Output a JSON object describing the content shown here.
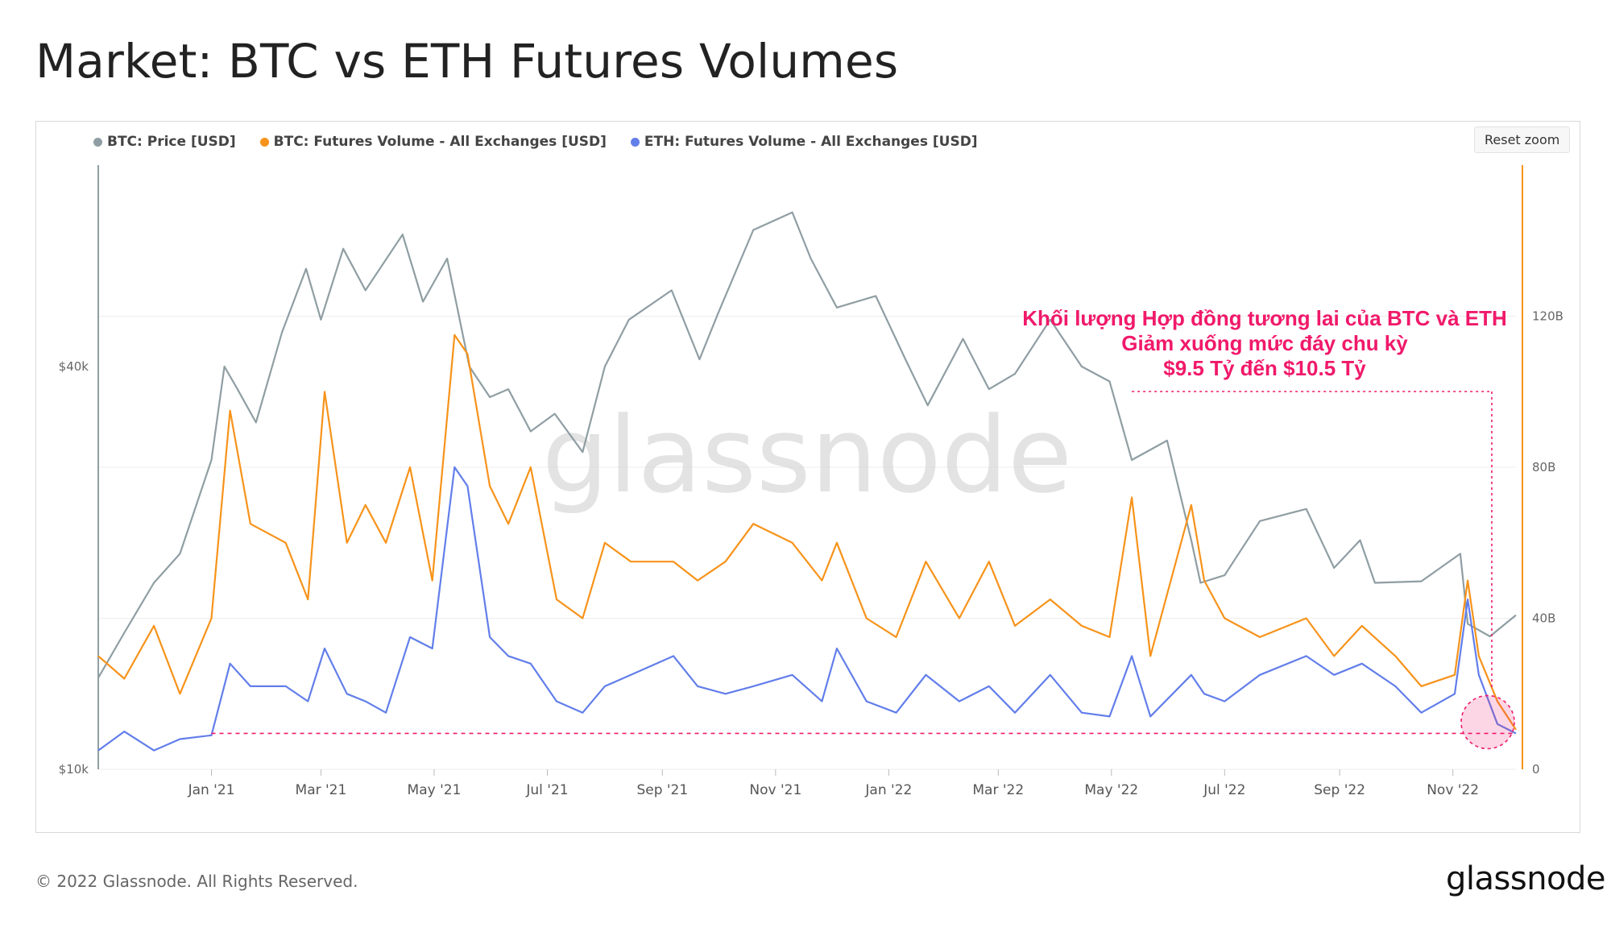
{
  "page": {
    "title": "Market: BTC vs ETH Futures Volumes",
    "copyright": "© 2022 Glassnode. All Rights Reserved.",
    "footer_logo": "glassnode",
    "watermark": "glassnode",
    "reset_zoom": "Reset zoom"
  },
  "annotation": {
    "line1": "Khối lượng Hợp đồng tương lai của BTC và ETH",
    "line2": "Giảm xuống mức đáy chu kỳ",
    "line3": "$9.5 Tỷ đến $10.5 Tỷ",
    "color": "#f0196a"
  },
  "chart_data": {
    "type": "line",
    "title": "Market: BTC vs ETH Futures Volumes",
    "x_ticks": [
      "Jan '21",
      "Mar '21",
      "May '21",
      "Jul '21",
      "Sep '21",
      "Nov '21",
      "Jan '22",
      "Mar '22",
      "May '22",
      "Jul '22",
      "Sep '22",
      "Nov '22"
    ],
    "x_range": [
      "2020-11-01",
      "2022-12-05"
    ],
    "left_axis": {
      "scale": "log",
      "ticks": [
        "$10k",
        "$40k"
      ],
      "range": [
        10000,
        80000
      ]
    },
    "right_axis": {
      "scale": "linear",
      "ticks": [
        "0",
        "40B",
        "80B",
        "120B"
      ],
      "range": [
        0,
        160
      ]
    },
    "grid": true,
    "legend_position": "top-left",
    "series": [
      {
        "name": "BTC: Price [USD]",
        "color": "#8f9ea3",
        "axis": "left",
        "points": [
          [
            "2020-11-01",
            13700
          ],
          [
            "2020-11-15",
            16000
          ],
          [
            "2020-12-01",
            19000
          ],
          [
            "2020-12-15",
            21000
          ],
          [
            "2021-01-01",
            29000
          ],
          [
            "2021-01-08",
            40000
          ],
          [
            "2021-01-15",
            37000
          ],
          [
            "2021-01-25",
            33000
          ],
          [
            "2021-02-08",
            45000
          ],
          [
            "2021-02-21",
            56000
          ],
          [
            "2021-03-01",
            47000
          ],
          [
            "2021-03-13",
            60000
          ],
          [
            "2021-03-25",
            52000
          ],
          [
            "2021-04-14",
            63000
          ],
          [
            "2021-04-25",
            50000
          ],
          [
            "2021-05-08",
            58000
          ],
          [
            "2021-05-20",
            40000
          ],
          [
            "2021-05-31",
            36000
          ],
          [
            "2021-06-10",
            37000
          ],
          [
            "2021-06-22",
            32000
          ],
          [
            "2021-07-05",
            34000
          ],
          [
            "2021-07-20",
            29800
          ],
          [
            "2021-08-01",
            40000
          ],
          [
            "2021-08-14",
            47000
          ],
          [
            "2021-09-06",
            52000
          ],
          [
            "2021-09-21",
            41000
          ],
          [
            "2021-10-01",
            48000
          ],
          [
            "2021-10-20",
            64000
          ],
          [
            "2021-11-10",
            68000
          ],
          [
            "2021-11-20",
            58000
          ],
          [
            "2021-12-04",
            49000
          ],
          [
            "2021-12-25",
            51000
          ],
          [
            "2022-01-10",
            41000
          ],
          [
            "2022-01-22",
            35000
          ],
          [
            "2022-02-10",
            44000
          ],
          [
            "2022-02-24",
            37000
          ],
          [
            "2022-03-10",
            39000
          ],
          [
            "2022-03-29",
            47000
          ],
          [
            "2022-04-15",
            40000
          ],
          [
            "2022-04-30",
            38000
          ],
          [
            "2022-05-12",
            29000
          ],
          [
            "2022-05-31",
            31000
          ],
          [
            "2022-06-13",
            22000
          ],
          [
            "2022-06-18",
            19000
          ],
          [
            "2022-07-01",
            19500
          ],
          [
            "2022-07-20",
            23500
          ],
          [
            "2022-08-14",
            24500
          ],
          [
            "2022-08-29",
            20000
          ],
          [
            "2022-09-12",
            22000
          ],
          [
            "2022-09-20",
            19000
          ],
          [
            "2022-10-15",
            19100
          ],
          [
            "2022-11-05",
            21000
          ],
          [
            "2022-11-09",
            16500
          ],
          [
            "2022-11-21",
            15800
          ],
          [
            "2022-12-05",
            17000
          ]
        ]
      },
      {
        "name": "BTC: Futures Volume - All Exchanges [USD]",
        "color": "#f7931a",
        "axis": "right",
        "points": [
          [
            "2020-11-01",
            30
          ],
          [
            "2020-11-15",
            24
          ],
          [
            "2020-12-01",
            38
          ],
          [
            "2020-12-15",
            20
          ],
          [
            "2021-01-01",
            40
          ],
          [
            "2021-01-11",
            95
          ],
          [
            "2021-01-22",
            65
          ],
          [
            "2021-02-10",
            60
          ],
          [
            "2021-02-22",
            45
          ],
          [
            "2021-03-03",
            100
          ],
          [
            "2021-03-15",
            60
          ],
          [
            "2021-03-25",
            70
          ],
          [
            "2021-04-05",
            60
          ],
          [
            "2021-04-18",
            80
          ],
          [
            "2021-04-30",
            50
          ],
          [
            "2021-05-12",
            115
          ],
          [
            "2021-05-19",
            110
          ],
          [
            "2021-05-31",
            75
          ],
          [
            "2021-06-10",
            65
          ],
          [
            "2021-06-22",
            80
          ],
          [
            "2021-07-06",
            45
          ],
          [
            "2021-07-20",
            40
          ],
          [
            "2021-08-01",
            60
          ],
          [
            "2021-08-15",
            55
          ],
          [
            "2021-09-07",
            55
          ],
          [
            "2021-09-20",
            50
          ],
          [
            "2021-10-05",
            55
          ],
          [
            "2021-10-20",
            65
          ],
          [
            "2021-11-10",
            60
          ],
          [
            "2021-11-26",
            50
          ],
          [
            "2021-12-04",
            60
          ],
          [
            "2021-12-20",
            40
          ],
          [
            "2022-01-05",
            35
          ],
          [
            "2022-01-21",
            55
          ],
          [
            "2022-02-08",
            40
          ],
          [
            "2022-02-24",
            55
          ],
          [
            "2022-03-10",
            38
          ],
          [
            "2022-03-29",
            45
          ],
          [
            "2022-04-15",
            38
          ],
          [
            "2022-04-30",
            35
          ],
          [
            "2022-05-12",
            72
          ],
          [
            "2022-05-22",
            30
          ],
          [
            "2022-06-13",
            70
          ],
          [
            "2022-06-20",
            50
          ],
          [
            "2022-07-01",
            40
          ],
          [
            "2022-07-20",
            35
          ],
          [
            "2022-08-14",
            40
          ],
          [
            "2022-08-29",
            30
          ],
          [
            "2022-09-13",
            38
          ],
          [
            "2022-10-01",
            30
          ],
          [
            "2022-10-15",
            22
          ],
          [
            "2022-11-02",
            25
          ],
          [
            "2022-11-09",
            50
          ],
          [
            "2022-11-15",
            30
          ],
          [
            "2022-11-25",
            18
          ],
          [
            "2022-12-05",
            10.5
          ]
        ]
      },
      {
        "name": "ETH: Futures Volume - All Exchanges [USD]",
        "color": "#627eea",
        "axis": "right",
        "points": [
          [
            "2020-11-01",
            5
          ],
          [
            "2020-11-15",
            10
          ],
          [
            "2020-12-01",
            5
          ],
          [
            "2020-12-15",
            8
          ],
          [
            "2021-01-01",
            9
          ],
          [
            "2021-01-11",
            28
          ],
          [
            "2021-01-22",
            22
          ],
          [
            "2021-02-10",
            22
          ],
          [
            "2021-02-22",
            18
          ],
          [
            "2021-03-03",
            32
          ],
          [
            "2021-03-15",
            20
          ],
          [
            "2021-03-25",
            18
          ],
          [
            "2021-04-05",
            15
          ],
          [
            "2021-04-18",
            35
          ],
          [
            "2021-04-30",
            32
          ],
          [
            "2021-05-12",
            80
          ],
          [
            "2021-05-19",
            75
          ],
          [
            "2021-05-31",
            35
          ],
          [
            "2021-06-10",
            30
          ],
          [
            "2021-06-22",
            28
          ],
          [
            "2021-07-06",
            18
          ],
          [
            "2021-07-20",
            15
          ],
          [
            "2021-08-01",
            22
          ],
          [
            "2021-08-15",
            25
          ],
          [
            "2021-09-07",
            30
          ],
          [
            "2021-09-20",
            22
          ],
          [
            "2021-10-05",
            20
          ],
          [
            "2021-10-20",
            22
          ],
          [
            "2021-11-10",
            25
          ],
          [
            "2021-11-26",
            18
          ],
          [
            "2021-12-04",
            32
          ],
          [
            "2021-12-20",
            18
          ],
          [
            "2022-01-05",
            15
          ],
          [
            "2022-01-21",
            25
          ],
          [
            "2022-02-08",
            18
          ],
          [
            "2022-02-24",
            22
          ],
          [
            "2022-03-10",
            15
          ],
          [
            "2022-03-29",
            25
          ],
          [
            "2022-04-15",
            15
          ],
          [
            "2022-04-30",
            14
          ],
          [
            "2022-05-12",
            30
          ],
          [
            "2022-05-22",
            14
          ],
          [
            "2022-06-13",
            25
          ],
          [
            "2022-06-20",
            20
          ],
          [
            "2022-07-01",
            18
          ],
          [
            "2022-07-20",
            25
          ],
          [
            "2022-08-14",
            30
          ],
          [
            "2022-08-29",
            25
          ],
          [
            "2022-09-13",
            28
          ],
          [
            "2022-10-01",
            22
          ],
          [
            "2022-10-15",
            15
          ],
          [
            "2022-11-02",
            20
          ],
          [
            "2022-11-09",
            45
          ],
          [
            "2022-11-15",
            25
          ],
          [
            "2022-11-25",
            12
          ],
          [
            "2022-12-05",
            9.5
          ]
        ]
      }
    ],
    "annotation_level": 9.5,
    "annotation_window": [
      "2022-05-12",
      "2022-12-05"
    ]
  }
}
